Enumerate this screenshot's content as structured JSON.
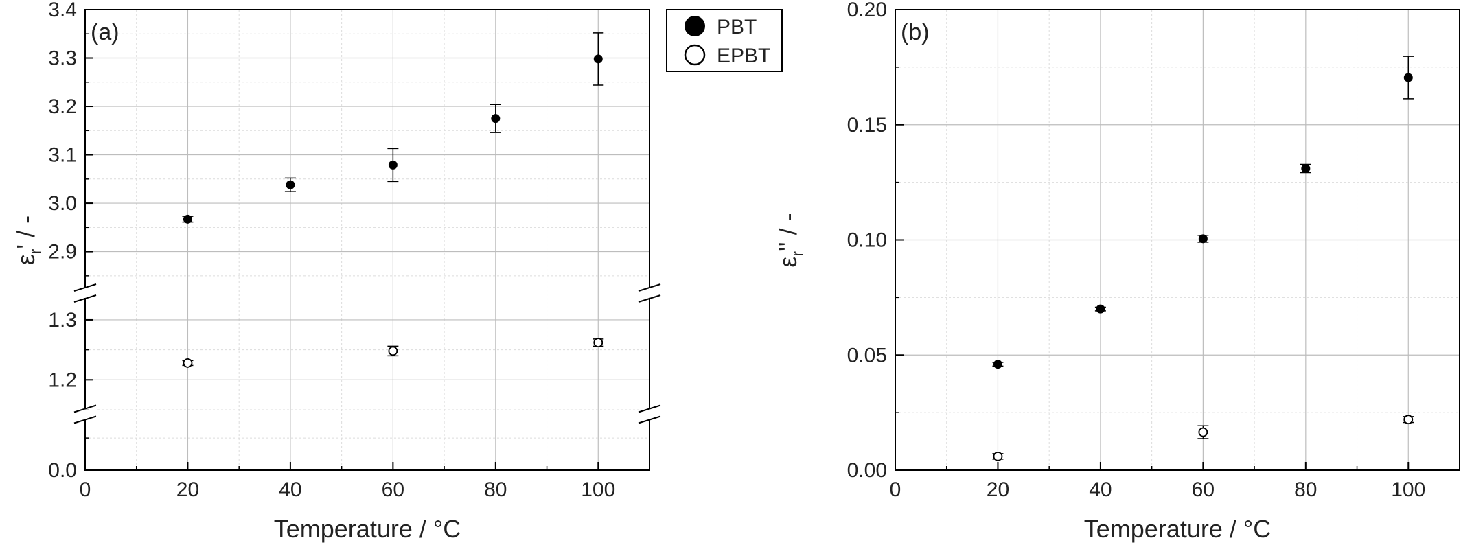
{
  "legend": {
    "items": [
      {
        "label": "PBT",
        "marker": "filled"
      },
      {
        "label": "EPBT",
        "marker": "open"
      }
    ]
  },
  "chart_data": [
    {
      "type": "scatter",
      "panel_label": "(a)",
      "xlabel": "Temperature / °C",
      "ylabel_symbol": "ε",
      "ylabel_sub": "r",
      "ylabel_suffix": "' / -",
      "xlim": [
        0,
        110
      ],
      "x_ticks": [
        "0",
        "20",
        "40",
        "60",
        "80",
        "100"
      ],
      "y_axis_broken": true,
      "y_segments": [
        {
          "range": [
            0.0,
            0.08
          ],
          "ticks": [
            "0.0"
          ]
        },
        {
          "range": [
            1.15,
            1.34
          ],
          "ticks": [
            "1.2",
            "1.3"
          ]
        },
        {
          "range": [
            2.82,
            3.4
          ],
          "ticks": [
            "2.9",
            "3.0",
            "3.1",
            "3.2",
            "3.3",
            "3.4"
          ]
        }
      ],
      "grid": true,
      "series": [
        {
          "name": "PBT",
          "marker": "filled",
          "x": [
            20,
            40,
            60,
            80,
            100
          ],
          "y": [
            2.967,
            3.038,
            3.079,
            3.175,
            3.298
          ],
          "err": [
            0.006,
            0.014,
            0.034,
            0.029,
            0.054
          ]
        },
        {
          "name": "EPBT",
          "marker": "open",
          "x": [
            20,
            60,
            100
          ],
          "y": [
            1.228,
            1.248,
            1.262
          ],
          "err": [
            0.004,
            0.008,
            0.006
          ]
        }
      ]
    },
    {
      "type": "scatter",
      "panel_label": "(b)",
      "xlabel": "Temperature / °C",
      "ylabel_symbol": "ε",
      "ylabel_sub": "r",
      "ylabel_suffix": "'' / -",
      "xlim": [
        0,
        110
      ],
      "ylim": [
        0,
        0.2
      ],
      "x_ticks": [
        "0",
        "20",
        "40",
        "60",
        "80",
        "100"
      ],
      "y_ticks": [
        "0.00",
        "0.05",
        "0.10",
        "0.15",
        "0.20"
      ],
      "grid": true,
      "series": [
        {
          "name": "PBT",
          "marker": "filled",
          "x": [
            20,
            40,
            60,
            80,
            100
          ],
          "y": [
            0.046,
            0.07,
            0.1005,
            0.131,
            0.1705
          ],
          "err": [
            0.0008,
            0.0008,
            0.0015,
            0.0018,
            0.0092
          ]
        },
        {
          "name": "EPBT",
          "marker": "open",
          "x": [
            20,
            60,
            100
          ],
          "y": [
            0.006,
            0.0165,
            0.022
          ],
          "err": [
            0.0012,
            0.0028,
            0.0013
          ]
        }
      ]
    }
  ]
}
